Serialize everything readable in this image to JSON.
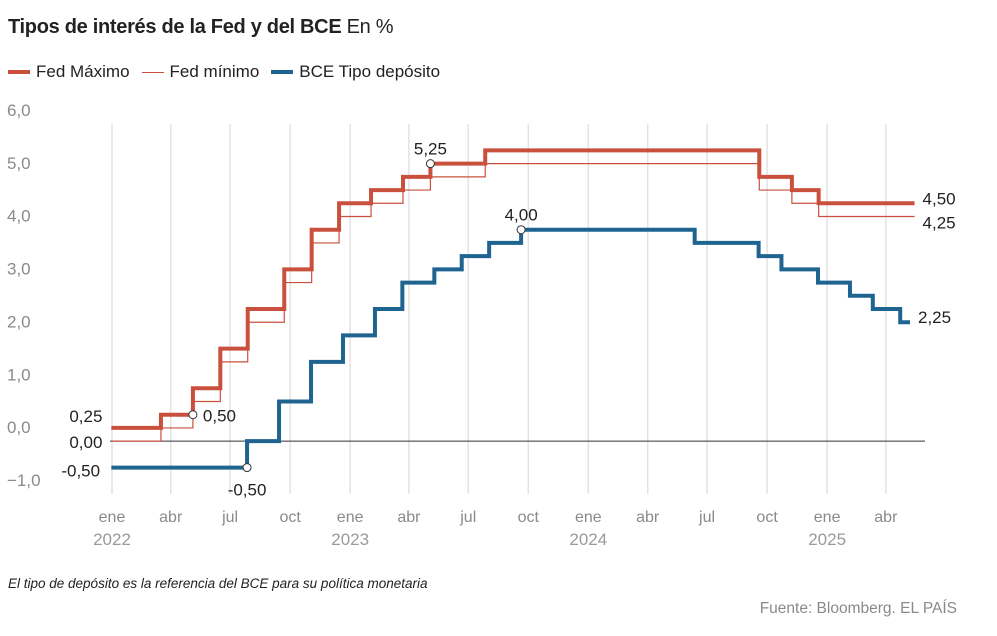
{
  "title": "Tipos de interés de la Fed y del BCE",
  "title_unit": "En %",
  "legend": [
    {
      "label": "Fed Máximo",
      "color": "#c9503c"
    },
    {
      "label": "Fed mínimo",
      "color": "#c9503c"
    },
    {
      "label": "BCE Tipo depósito",
      "color": "#1f6491"
    }
  ],
  "note": "El tipo de depósito es la referencia del BCE para su política monetaria",
  "source": "Fuente: Bloomberg. EL PAÍS",
  "chart_data": {
    "type": "line",
    "title": "Tipos de interés de la Fed y del BCE",
    "ylim": [
      -1.0,
      6.0
    ],
    "yticks": [
      {
        "value": 6.0,
        "label": "6,0"
      },
      {
        "value": 5.0,
        "label": "5,0"
      },
      {
        "value": 4.0,
        "label": "4,0"
      },
      {
        "value": 3.0,
        "label": "3,0"
      },
      {
        "value": 2.0,
        "label": "2,0"
      },
      {
        "value": 1.0,
        "label": "1,0"
      },
      {
        "value": 0.0,
        "label": "0,0"
      },
      {
        "value": -1.0,
        "label": "−1,0"
      }
    ],
    "xlim": [
      "2022-01-01",
      "2025-05-31"
    ],
    "xticks": [
      {
        "date": "2022-01-01",
        "label": "ene",
        "year": "2022"
      },
      {
        "date": "2022-04-01",
        "label": "abr"
      },
      {
        "date": "2022-07-01",
        "label": "jul"
      },
      {
        "date": "2022-10-01",
        "label": "oct"
      },
      {
        "date": "2023-01-01",
        "label": "ene",
        "year": "2023"
      },
      {
        "date": "2023-04-01",
        "label": "abr"
      },
      {
        "date": "2023-07-01",
        "label": "jul"
      },
      {
        "date": "2023-10-01",
        "label": "oct"
      },
      {
        "date": "2024-01-01",
        "label": "ene",
        "year": "2024"
      },
      {
        "date": "2024-04-01",
        "label": "abr"
      },
      {
        "date": "2024-07-01",
        "label": "jul"
      },
      {
        "date": "2024-10-01",
        "label": "oct"
      },
      {
        "date": "2025-01-01",
        "label": "ene",
        "year": "2025"
      },
      {
        "date": "2025-04-01",
        "label": "abr"
      }
    ],
    "grid": "vertical",
    "zero_line": true,
    "series": [
      {
        "name": "Fed Máximo",
        "color": "#c9503c",
        "width": 4,
        "steps": [
          [
            "2021-12-31",
            0.25
          ],
          [
            "2022-03-17",
            0.5
          ],
          [
            "2022-05-05",
            1.0
          ],
          [
            "2022-06-16",
            1.75
          ],
          [
            "2022-07-28",
            2.5
          ],
          [
            "2022-09-22",
            3.25
          ],
          [
            "2022-11-03",
            4.0
          ],
          [
            "2022-12-15",
            4.5
          ],
          [
            "2023-02-02",
            4.75
          ],
          [
            "2023-03-23",
            5.0
          ],
          [
            "2023-05-04",
            5.25
          ],
          [
            "2023-07-27",
            5.5
          ],
          [
            "2024-09-19",
            5.0
          ],
          [
            "2024-11-08",
            4.75
          ],
          [
            "2024-12-19",
            4.5
          ]
        ],
        "end": "2025-05-15"
      },
      {
        "name": "Fed mínimo",
        "color": "#c9503c",
        "width": 1.2,
        "steps": [
          [
            "2021-12-31",
            0.0
          ],
          [
            "2022-03-17",
            0.25
          ],
          [
            "2022-05-05",
            0.75
          ],
          [
            "2022-06-16",
            1.5
          ],
          [
            "2022-07-28",
            2.25
          ],
          [
            "2022-09-22",
            3.0
          ],
          [
            "2022-11-03",
            3.75
          ],
          [
            "2022-12-15",
            4.25
          ],
          [
            "2023-02-02",
            4.5
          ],
          [
            "2023-03-23",
            4.75
          ],
          [
            "2023-05-04",
            5.0
          ],
          [
            "2023-07-27",
            5.25
          ],
          [
            "2024-09-19",
            4.75
          ],
          [
            "2024-11-08",
            4.5
          ],
          [
            "2024-12-19",
            4.25
          ]
        ],
        "end": "2025-05-15"
      },
      {
        "name": "BCE Tipo depósito",
        "color": "#1f6491",
        "width": 4,
        "steps": [
          [
            "2021-12-31",
            -0.5
          ],
          [
            "2022-07-27",
            0.0
          ],
          [
            "2022-09-14",
            0.75
          ],
          [
            "2022-11-02",
            1.5
          ],
          [
            "2022-12-21",
            2.0
          ],
          [
            "2023-02-08",
            2.5
          ],
          [
            "2023-03-22",
            3.0
          ],
          [
            "2023-05-10",
            3.25
          ],
          [
            "2023-06-21",
            3.5
          ],
          [
            "2023-08-02",
            3.75
          ],
          [
            "2023-09-20",
            4.0
          ],
          [
            "2024-06-12",
            3.75
          ],
          [
            "2024-09-18",
            3.5
          ],
          [
            "2024-10-23",
            3.25
          ],
          [
            "2024-12-18",
            3.0
          ],
          [
            "2025-02-05",
            2.75
          ],
          [
            "2025-03-12",
            2.5
          ],
          [
            "2025-04-23",
            2.25
          ]
        ],
        "end": "2025-05-08"
      }
    ],
    "annotations": [
      {
        "series": 0,
        "date": "2021-12-31",
        "value": 0.25,
        "label": "0,25",
        "marker": false,
        "pos": "start-above"
      },
      {
        "series": 1,
        "date": "2021-12-31",
        "value": 0.0,
        "label": "0,00",
        "marker": false,
        "pos": "start-below"
      },
      {
        "series": 0,
        "date": "2022-05-05",
        "value": 0.5,
        "label": "0,50",
        "marker": true,
        "pos": "right"
      },
      {
        "series": 2,
        "date": "2021-12-31",
        "value": -0.5,
        "label": "-0,50",
        "marker": false,
        "pos": "start"
      },
      {
        "series": 2,
        "date": "2022-07-27",
        "value": -0.5,
        "label": "-0,50",
        "marker": true,
        "pos": "below"
      },
      {
        "series": 0,
        "date": "2023-05-04",
        "value": 5.25,
        "label": "5,25",
        "marker": true,
        "pos": "above"
      },
      {
        "series": 2,
        "date": "2023-09-20",
        "value": 4.0,
        "label": "4,00",
        "marker": true,
        "pos": "above"
      },
      {
        "series": 0,
        "date": "2025-05-15",
        "value": 4.5,
        "label": "4,50",
        "marker": false,
        "pos": "end"
      },
      {
        "series": 1,
        "date": "2025-05-15",
        "value": 4.25,
        "label": "4,25",
        "marker": false,
        "pos": "end-below"
      },
      {
        "series": 2,
        "date": "2025-05-08",
        "value": 2.25,
        "label": "2,25",
        "marker": false,
        "pos": "end"
      }
    ]
  }
}
